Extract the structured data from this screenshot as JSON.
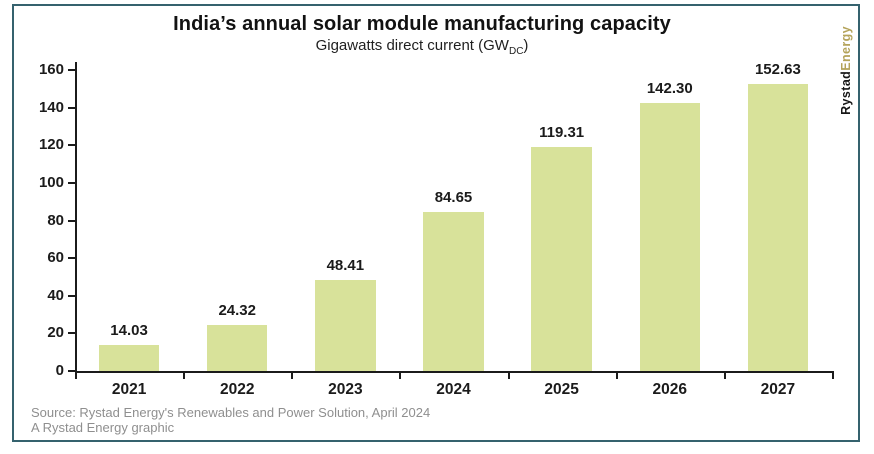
{
  "header": {
    "title": "India’s annual solar module manufacturing capacity",
    "subtitle_prefix": "Gigawatts direct current (GW",
    "subtitle_sub": "DC",
    "subtitle_suffix": ")"
  },
  "logo": {
    "part1": "Rystad",
    "part2": "Energy"
  },
  "chart_data": {
    "type": "bar",
    "title": "India’s annual solar module manufacturing capacity",
    "subtitle": "Gigawatts direct current (GW_DC)",
    "categories": [
      "2021",
      "2022",
      "2023",
      "2024",
      "2025",
      "2026",
      "2027"
    ],
    "values": [
      14.03,
      24.32,
      48.41,
      84.65,
      119.31,
      142.3,
      152.63
    ],
    "value_labels": [
      "14.03",
      "24.32",
      "48.41",
      "84.65",
      "119.31",
      "142.30",
      "152.63"
    ],
    "xlabel": "",
    "ylabel": "",
    "ylim": [
      0,
      160
    ],
    "yticks": [
      0,
      20,
      40,
      60,
      80,
      100,
      120,
      140,
      160
    ],
    "grid": false,
    "legend": "none",
    "bar_color": "#d8e29a"
  },
  "footer": {
    "source_line1": "Source: Rystad Energy's Renewables and Power Solution, April 2024",
    "source_line2": "A Rystad Energy graphic"
  },
  "colors": {
    "border": "#35626e",
    "axis": "#1b1b1b",
    "bar_fill": "#d8e29a",
    "source_text": "#8f8f8f",
    "logo_rystad": "#161616",
    "logo_energy": "#b4a35a"
  }
}
